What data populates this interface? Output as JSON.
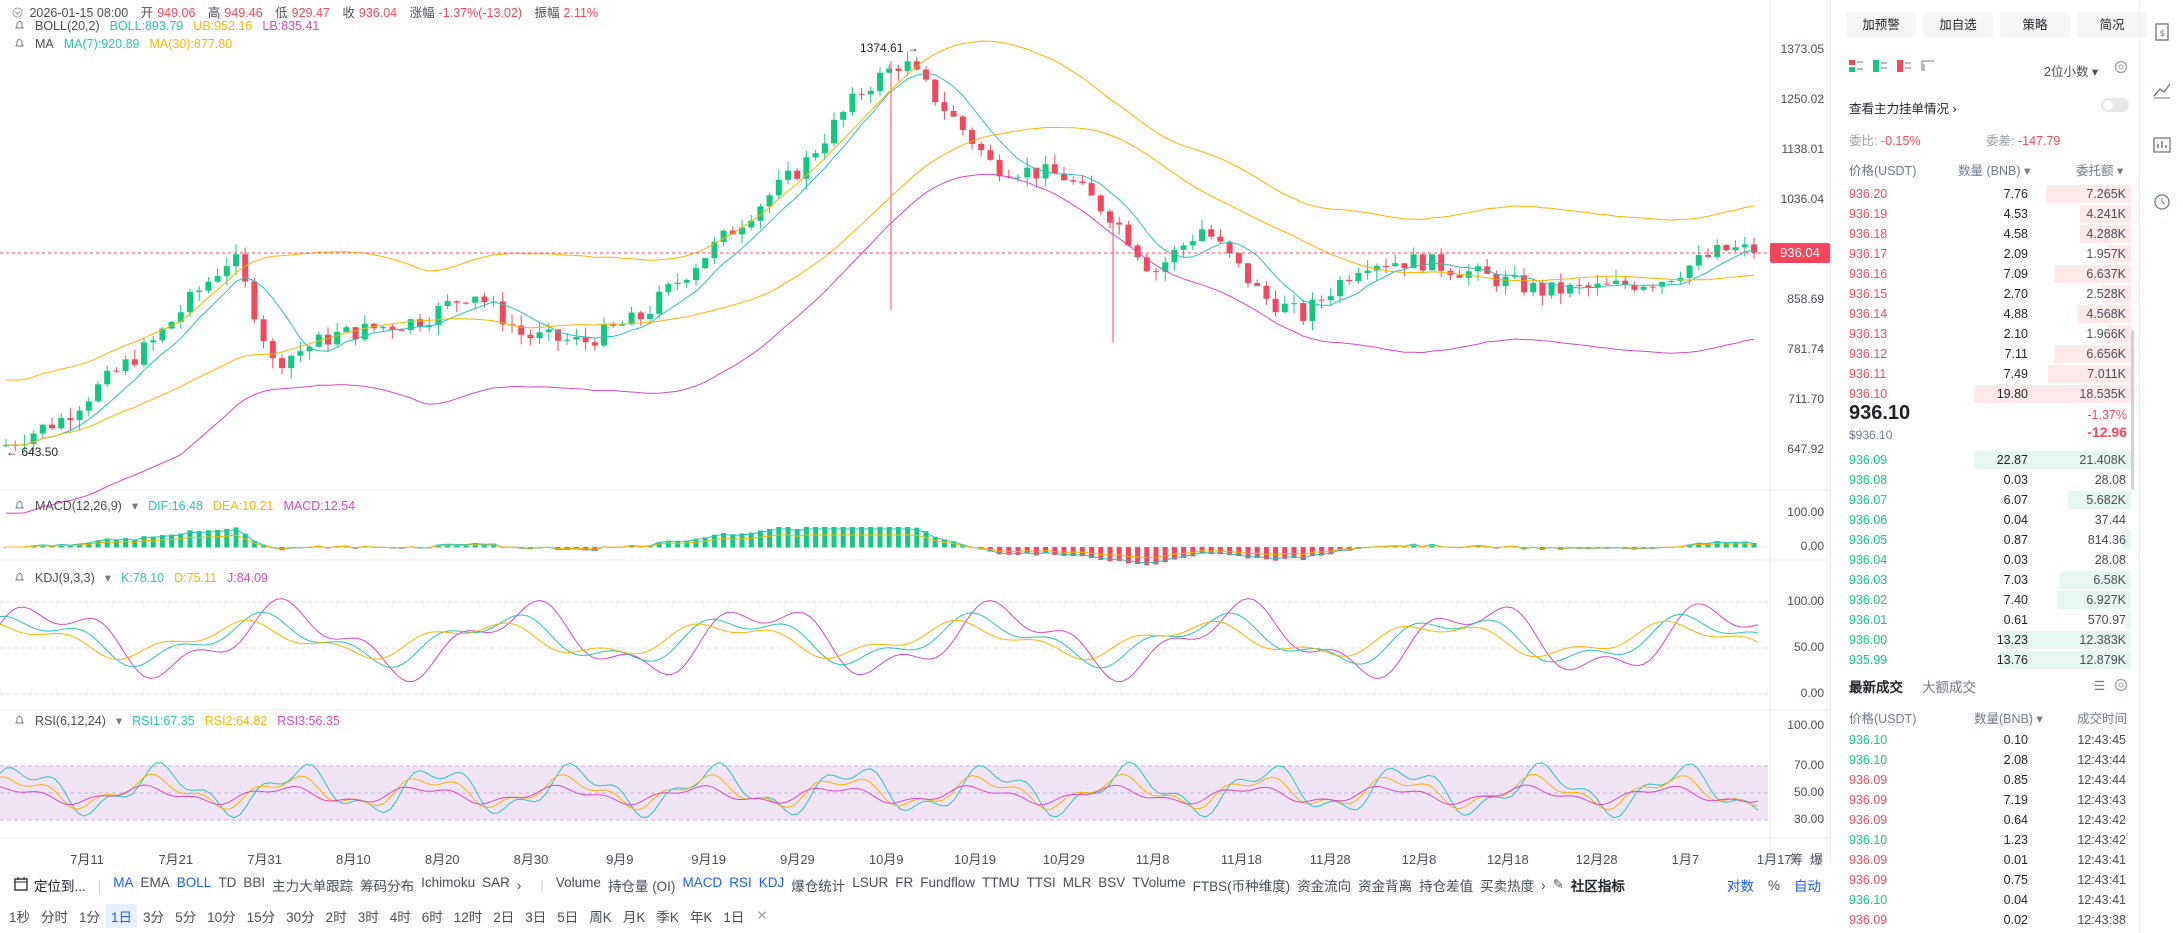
{
  "ohlc": {
    "time": "2026-01-15 08:00",
    "open_label": "开",
    "open": "949.06",
    "high_label": "高",
    "high": "949.46",
    "low_label": "低",
    "low": "929.47",
    "close_label": "收",
    "close": "936.04",
    "change_label": "涨幅",
    "change": "-1.37%(-13.02)",
    "amp_label": "振幅",
    "amp": "2.11%"
  },
  "indicators": {
    "boll": {
      "name": "BOLL(20,2)",
      "boll": "BOLL:893.79",
      "ub": "UB:952.16",
      "lb": "LB:835.41"
    },
    "ma": {
      "name": "MA",
      "ma7": "MA(7):920.89",
      "ma30": "MA(30):877.80"
    },
    "macd": {
      "name": "MACD(12,26,9)",
      "dif": "DIF:16.48",
      "dea": "DEA:10.21",
      "macd": "MACD:12.54"
    },
    "kdj": {
      "name": "KDJ(9,3,3)",
      "k": "K:78.10",
      "d": "D:75.11",
      "j": "J:84.09"
    },
    "rsi": {
      "name": "RSI(6,12,24)",
      "rsi1": "RSI1:67.35",
      "rsi2": "RSI2:64.82",
      "rsi3": "RSI3:56.35"
    }
  },
  "y_axis": {
    "price": [
      "1373.05",
      "1250.02",
      "1138.01",
      "1036.04",
      "858.69",
      "781.74",
      "711.70",
      "647.92"
    ],
    "current_price": "936.04",
    "macd": [
      "100.00",
      "0.00"
    ],
    "kdj": [
      "100.00",
      "50.00",
      "0.00"
    ],
    "rsi": [
      "100.00",
      "70.00",
      "50.00",
      "30.00"
    ]
  },
  "annotations": {
    "high": "1374.61",
    "low": "643.50"
  },
  "x_axis": [
    "7月11",
    "7月21",
    "7月31",
    "8月10",
    "8月20",
    "8月30",
    "9月9",
    "9月19",
    "9月29",
    "10月9",
    "10月19",
    "10月29",
    "11月8",
    "11月18",
    "11月28",
    "12月8",
    "12月18",
    "12月28",
    "1月7",
    "1月17"
  ],
  "x_right_icons": [
    "筹",
    "爆"
  ],
  "toolbar1": {
    "locate": "定位到...",
    "items": [
      "MA",
      "EMA",
      "BOLL",
      "TD",
      "BBI",
      "主力大单跟踪",
      "筹码分布",
      "Ichimoku",
      "SAR"
    ],
    "active_items": [
      "MA",
      "BOLL"
    ],
    "items2": [
      "Volume",
      "持仓量 (OI)",
      "MACD",
      "RSI",
      "KDJ",
      "爆仓统计",
      "LSUR",
      "FR",
      "Fundflow",
      "TTMU",
      "TTSI",
      "MLR",
      "BSV",
      "TVolume",
      "FTBS(币种维度)",
      "资金流向",
      "资金背离",
      "持仓差值",
      "买卖热度"
    ],
    "active_items2": [
      "MACD",
      "RSI",
      "KDJ"
    ],
    "community": "社区指标",
    "right": [
      "对数",
      "%",
      "自动"
    ]
  },
  "timeframes": [
    "1秒",
    "分时",
    "1分",
    "1日",
    "3分",
    "5分",
    "10分",
    "15分",
    "30分",
    "2时",
    "3时",
    "4时",
    "6时",
    "12时",
    "2日",
    "3日",
    "5日",
    "周K",
    "月K",
    "季K",
    "年K",
    "1日"
  ],
  "active_timeframe": "1日",
  "right_panel": {
    "buttons": [
      "加预警",
      "加自选",
      "策略",
      "简况"
    ],
    "precision": "2位小数",
    "main_order": "查看主力挂单情况",
    "weibi_label": "委比:",
    "weibi": "-0.15%",
    "weicha_label": "委差:",
    "weicha": "-147.79",
    "col_price": "价格(USDT)",
    "col_qty": "数量 (BNB)",
    "col_total": "委托额",
    "asks": [
      {
        "p": "936.20",
        "q": "7.76",
        "t": "7.265K",
        "w": 0.3
      },
      {
        "p": "936.19",
        "q": "4.53",
        "t": "4.241K",
        "w": 0.18
      },
      {
        "p": "936.18",
        "q": "4.58",
        "t": "4.288K",
        "w": 0.18
      },
      {
        "p": "936.17",
        "q": "2.09",
        "t": "1.957K",
        "w": 0.08
      },
      {
        "p": "936.16",
        "q": "7.09",
        "t": "6.637K",
        "w": 0.27
      },
      {
        "p": "936.15",
        "q": "2.70",
        "t": "2.528K",
        "w": 0.1
      },
      {
        "p": "936.14",
        "q": "4.88",
        "t": "4.568K",
        "w": 0.19
      },
      {
        "p": "936.13",
        "q": "2.10",
        "t": "1.966K",
        "w": 0.08
      },
      {
        "p": "936.12",
        "q": "7.11",
        "t": "6.656K",
        "w": 0.27
      },
      {
        "p": "936.11",
        "q": "7.49",
        "t": "7.011K",
        "w": 0.29
      },
      {
        "p": "936.10",
        "q": "19.80",
        "t": "18.535K",
        "w": 0.55
      }
    ],
    "last_price": "936.10",
    "last_price_usd": "$936.10",
    "last_change_pct": "-1.37%",
    "last_change": "-12.96",
    "bids": [
      {
        "p": "936.09",
        "q": "22.87",
        "t": "21.408K",
        "w": 0.55
      },
      {
        "p": "936.08",
        "q": "0.03",
        "t": "28.08",
        "w": 0.0
      },
      {
        "p": "936.07",
        "q": "6.07",
        "t": "5.682K",
        "w": 0.22
      },
      {
        "p": "936.06",
        "q": "0.04",
        "t": "37.44",
        "w": 0.0
      },
      {
        "p": "936.05",
        "q": "0.87",
        "t": "814.36",
        "w": 0.03
      },
      {
        "p": "936.04",
        "q": "0.03",
        "t": "28.08",
        "w": 0.0
      },
      {
        "p": "936.03",
        "q": "7.03",
        "t": "6.58K",
        "w": 0.25
      },
      {
        "p": "936.02",
        "q": "7.40",
        "t": "6.927K",
        "w": 0.26
      },
      {
        "p": "936.01",
        "q": "0.61",
        "t": "570.97",
        "w": 0.02
      },
      {
        "p": "936.00",
        "q": "13.23",
        "t": "12.383K",
        "w": 0.45
      },
      {
        "p": "935.99",
        "q": "13.76",
        "t": "12.879K",
        "w": 0.46
      }
    ],
    "tabs": [
      "最新成交",
      "大额成交"
    ],
    "trade_col_price": "价格(USDT)",
    "trade_col_qty": "数量(BNB)",
    "trade_col_time": "成交时间",
    "trades": [
      {
        "p": "936.10",
        "q": "0.10",
        "t": "12:43:45",
        "side": "buy"
      },
      {
        "p": "936.10",
        "q": "2.08",
        "t": "12:43:44",
        "side": "buy"
      },
      {
        "p": "936.09",
        "q": "0.85",
        "t": "12:43:44",
        "side": "sell"
      },
      {
        "p": "936.09",
        "q": "7.19",
        "t": "12:43:43",
        "side": "sell"
      },
      {
        "p": "936.09",
        "q": "0.64",
        "t": "12:43:42",
        "side": "sell"
      },
      {
        "p": "936.10",
        "q": "1.23",
        "t": "12:43:42",
        "side": "buy"
      },
      {
        "p": "936.09",
        "q": "0.01",
        "t": "12:43:41",
        "side": "sell"
      },
      {
        "p": "936.09",
        "q": "0.75",
        "t": "12:43:41",
        "side": "sell"
      },
      {
        "p": "936.10",
        "q": "0.04",
        "t": "12:43:41",
        "side": "buy"
      },
      {
        "p": "936.09",
        "q": "0.02",
        "t": "12:43:38",
        "side": "sell"
      }
    ]
  },
  "colors": {
    "up": "#0ecb81",
    "down": "#f6465d",
    "boll_mid": "#2bc2b8",
    "boll_up": "#f7b500",
    "boll_lb": "#d14ac1",
    "ma7": "#2bc2b8",
    "ma30": "#f7b500",
    "rsi_band": "#e9d9f2",
    "accent": "#1e5bff"
  }
}
